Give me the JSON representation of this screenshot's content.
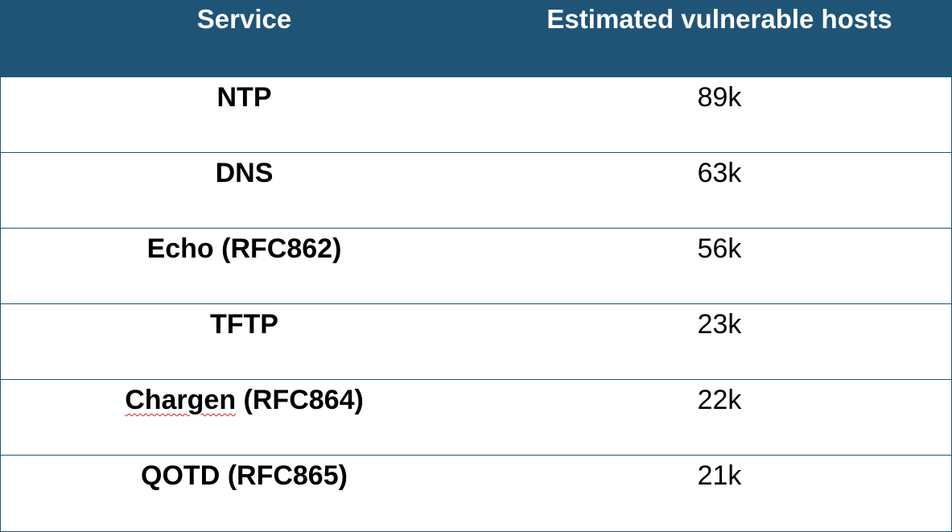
{
  "colors": {
    "header_background": "#1f5477",
    "header_text": "#ffffff",
    "row_divider": "#1f5477",
    "spellcheck_underline": "#d02020"
  },
  "table": {
    "headers": {
      "service": "Service",
      "hosts": "Estimated vulnerable hosts"
    },
    "rows": [
      {
        "service": "NTP",
        "hosts": "89k"
      },
      {
        "service": "DNS",
        "hosts": "63k"
      },
      {
        "service": "Echo (RFC862)",
        "hosts": "56k"
      },
      {
        "service": "TFTP",
        "hosts": "23k"
      },
      {
        "service_word": "Chargen",
        "service_rest": " (RFC864)",
        "hosts": "22k"
      },
      {
        "service": "QOTD (RFC865)",
        "hosts": "21k"
      }
    ]
  }
}
